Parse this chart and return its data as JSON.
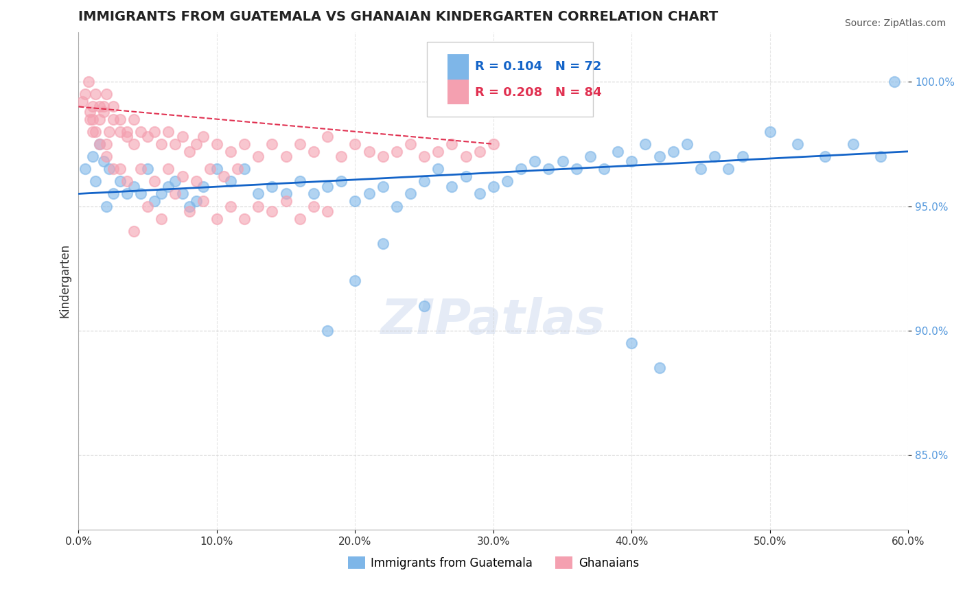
{
  "title": "IMMIGRANTS FROM GUATEMALA VS GHANAIAN KINDERGARTEN CORRELATION CHART",
  "source": "Source: ZipAtlas.com",
  "xlabel_bottom": "",
  "ylabel": "Kindergarten",
  "xlabel_ticks": [
    "0.0%",
    "10.0%",
    "20.0%",
    "30.0%",
    "40.0%",
    "50.0%",
    "60.0%"
  ],
  "xlabel_values": [
    0.0,
    10.0,
    20.0,
    30.0,
    40.0,
    50.0,
    60.0
  ],
  "ylim": [
    82.0,
    102.0
  ],
  "xlim": [
    0.0,
    60.0
  ],
  "yticks_pct": [
    85.0,
    90.0,
    95.0,
    100.0
  ],
  "ytick_labels": [
    "85.0%",
    "90.0%",
    "95.0%",
    "100.0%"
  ],
  "legend_blue_r": "R = 0.104",
  "legend_blue_n": "N = 72",
  "legend_pink_r": "R = 0.208",
  "legend_pink_n": "N = 84",
  "blue_color": "#7EB6E8",
  "pink_color": "#F4A0B0",
  "blue_line_color": "#1464C8",
  "pink_line_color": "#E03050",
  "watermark": "ZIPatlas",
  "legend_labels": [
    "Immigrants from Guatemala",
    "Ghanaians"
  ],
  "blue_scatter_x": [
    0.5,
    1.0,
    1.2,
    1.5,
    1.8,
    2.0,
    2.2,
    2.5,
    3.0,
    3.5,
    4.0,
    4.5,
    5.0,
    5.5,
    6.0,
    6.5,
    7.0,
    7.5,
    8.0,
    8.5,
    9.0,
    10.0,
    11.0,
    12.0,
    13.0,
    14.0,
    15.0,
    16.0,
    17.0,
    18.0,
    19.0,
    20.0,
    21.0,
    22.0,
    23.0,
    24.0,
    25.0,
    26.0,
    27.0,
    28.0,
    29.0,
    30.0,
    31.0,
    32.0,
    33.0,
    34.0,
    35.0,
    36.0,
    37.0,
    38.0,
    39.0,
    40.0,
    41.0,
    42.0,
    43.0,
    44.0,
    45.0,
    46.0,
    47.0,
    48.0,
    50.0,
    52.0,
    54.0,
    56.0,
    58.0,
    59.0,
    40.0,
    42.0,
    25.0,
    22.0,
    20.0,
    18.0
  ],
  "blue_scatter_y": [
    96.5,
    97.0,
    96.0,
    97.5,
    96.8,
    95.0,
    96.5,
    95.5,
    96.0,
    95.5,
    95.8,
    95.5,
    96.5,
    95.2,
    95.5,
    95.8,
    96.0,
    95.5,
    95.0,
    95.2,
    95.8,
    96.5,
    96.0,
    96.5,
    95.5,
    95.8,
    95.5,
    96.0,
    95.5,
    95.8,
    96.0,
    95.2,
    95.5,
    95.8,
    95.0,
    95.5,
    96.0,
    96.5,
    95.8,
    96.2,
    95.5,
    95.8,
    96.0,
    96.5,
    96.8,
    96.5,
    96.8,
    96.5,
    97.0,
    96.5,
    97.2,
    96.8,
    97.5,
    97.0,
    97.2,
    97.5,
    96.5,
    97.0,
    96.5,
    97.0,
    98.0,
    97.5,
    97.0,
    97.5,
    97.0,
    100.0,
    89.5,
    88.5,
    91.0,
    93.5,
    92.0,
    90.0
  ],
  "pink_scatter_x": [
    0.3,
    0.5,
    0.7,
    0.8,
    1.0,
    1.0,
    1.2,
    1.2,
    1.5,
    1.5,
    1.8,
    1.8,
    2.0,
    2.0,
    2.2,
    2.5,
    2.5,
    3.0,
    3.0,
    3.5,
    3.5,
    4.0,
    4.0,
    4.5,
    5.0,
    5.5,
    6.0,
    6.5,
    7.0,
    7.5,
    8.0,
    8.5,
    9.0,
    10.0,
    11.0,
    12.0,
    13.0,
    14.0,
    15.0,
    16.0,
    17.0,
    18.0,
    19.0,
    20.0,
    21.0,
    22.0,
    23.0,
    24.0,
    25.0,
    26.0,
    27.0,
    28.0,
    29.0,
    30.0,
    4.0,
    5.0,
    6.0,
    7.0,
    8.0,
    9.0,
    10.0,
    11.0,
    12.0,
    13.0,
    14.0,
    15.0,
    16.0,
    17.0,
    18.0,
    3.0,
    2.0,
    2.5,
    1.5,
    1.0,
    0.8,
    3.5,
    4.5,
    5.5,
    6.5,
    7.5,
    8.5,
    9.5,
    10.5,
    11.5
  ],
  "pink_scatter_y": [
    99.2,
    99.5,
    100.0,
    98.8,
    99.0,
    98.5,
    99.5,
    98.0,
    99.0,
    98.5,
    99.0,
    98.8,
    99.5,
    97.5,
    98.0,
    99.0,
    98.5,
    98.5,
    98.0,
    98.0,
    97.8,
    98.5,
    97.5,
    98.0,
    97.8,
    98.0,
    97.5,
    98.0,
    97.5,
    97.8,
    97.2,
    97.5,
    97.8,
    97.5,
    97.2,
    97.5,
    97.0,
    97.5,
    97.0,
    97.5,
    97.2,
    97.8,
    97.0,
    97.5,
    97.2,
    97.0,
    97.2,
    97.5,
    97.0,
    97.2,
    97.5,
    97.0,
    97.2,
    97.5,
    94.0,
    95.0,
    94.5,
    95.5,
    94.8,
    95.2,
    94.5,
    95.0,
    94.5,
    95.0,
    94.8,
    95.2,
    94.5,
    95.0,
    94.8,
    96.5,
    97.0,
    96.5,
    97.5,
    98.0,
    98.5,
    96.0,
    96.5,
    96.0,
    96.5,
    96.2,
    96.0,
    96.5,
    96.2,
    96.5
  ],
  "blue_trend_x": [
    0.0,
    60.0
  ],
  "blue_trend_y": [
    95.5,
    97.2
  ],
  "pink_trend_x": [
    0.0,
    30.0
  ],
  "pink_trend_y": [
    99.0,
    97.5
  ],
  "dpi": 100,
  "figsize": [
    14.06,
    8.92
  ]
}
